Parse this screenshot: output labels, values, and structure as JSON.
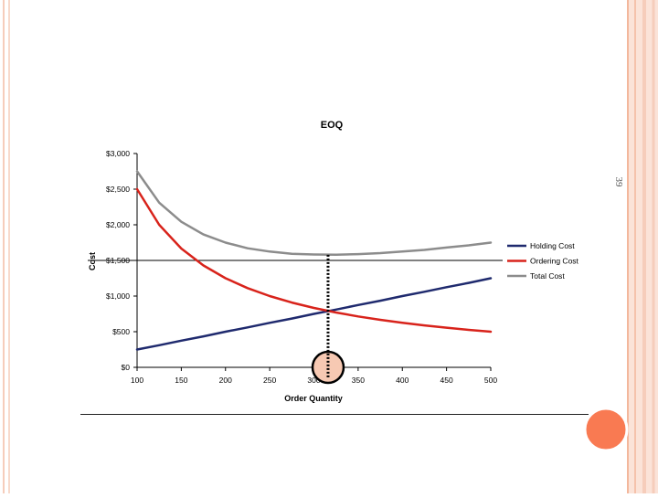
{
  "slide": {
    "page_number": "39",
    "colors": {
      "accent": "#f97a52",
      "side_stripe": "#f6cdbb",
      "marker_fill": "#f7c9b3"
    }
  },
  "chart_data": {
    "type": "line",
    "title": "EOQ",
    "xlabel": "Order Quantity",
    "ylabel": "Cost",
    "xlim": [
      100,
      500
    ],
    "ylim": [
      0,
      3000
    ],
    "x_ticks": [
      100,
      150,
      200,
      250,
      300,
      350,
      400,
      450,
      500
    ],
    "x_tick_labels": [
      "100",
      "150",
      "200",
      "250",
      "300",
      "350",
      "400",
      "450",
      "500"
    ],
    "y_ticks": [
      0,
      500,
      1000,
      1500,
      2000,
      2500,
      3000
    ],
    "y_tick_labels": [
      "$0",
      "$500",
      "$1,000",
      "$1,500",
      "$2,000",
      "$2,500",
      "$3,000"
    ],
    "legend_position": "right",
    "grid": false,
    "reference_line_y": 1500,
    "optimum_x": 316,
    "series": [
      {
        "name": "Holding Cost",
        "color": "#1f2a6e",
        "x": [
          100,
          125,
          150,
          175,
          200,
          225,
          250,
          275,
          300,
          325,
          350,
          375,
          400,
          425,
          450,
          475,
          500
        ],
        "y": [
          250,
          310,
          375,
          435,
          500,
          560,
          625,
          685,
          750,
          810,
          875,
          935,
          1000,
          1060,
          1125,
          1185,
          1250
        ]
      },
      {
        "name": "Ordering Cost",
        "color": "#d8231b",
        "x": [
          100,
          125,
          150,
          175,
          200,
          225,
          250,
          275,
          300,
          325,
          350,
          375,
          400,
          425,
          450,
          475,
          500
        ],
        "y": [
          2500,
          2000,
          1667,
          1429,
          1250,
          1111,
          1000,
          909,
          833,
          769,
          714,
          667,
          625,
          588,
          556,
          526,
          500
        ]
      },
      {
        "name": "Total Cost",
        "color": "#8c8c8c",
        "x": [
          100,
          125,
          150,
          175,
          200,
          225,
          250,
          275,
          300,
          325,
          350,
          375,
          400,
          425,
          450,
          475,
          500
        ],
        "y": [
          2750,
          2310,
          2042,
          1864,
          1750,
          1671,
          1625,
          1594,
          1583,
          1579,
          1589,
          1602,
          1625,
          1648,
          1681,
          1711,
          1750
        ]
      }
    ]
  }
}
